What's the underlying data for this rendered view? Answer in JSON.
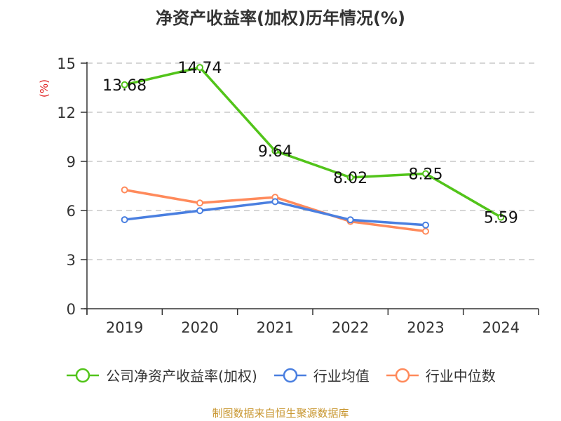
{
  "chart_data": {
    "type": "line",
    "title": "净资产收益率(加权)历年情况(%)",
    "ylabel": "(%)",
    "xlabel": "",
    "categories": [
      "2019",
      "2020",
      "2021",
      "2022",
      "2023",
      "2024"
    ],
    "ylim": [
      0,
      15
    ],
    "yticks": [
      0,
      3,
      6,
      9,
      12,
      15
    ],
    "grid": true,
    "legend_position": "bottom",
    "series": [
      {
        "name": "公司净资产收益率(加权)",
        "color": "#52C41A",
        "values": [
          13.68,
          14.74,
          9.64,
          8.02,
          8.25,
          5.59
        ],
        "labels": [
          "13.68",
          "14.74",
          "9.64",
          "8.02",
          "8.25",
          "5.59"
        ]
      },
      {
        "name": "行业均值",
        "color": "#4A7FE0",
        "values": [
          5.44,
          5.99,
          6.54,
          5.43,
          5.11,
          null
        ]
      },
      {
        "name": "行业中位数",
        "color": "#FF8A5B",
        "values": [
          7.26,
          6.46,
          6.81,
          5.33,
          4.73,
          null
        ]
      }
    ]
  },
  "source": "制图数据来自恒生聚源数据库"
}
